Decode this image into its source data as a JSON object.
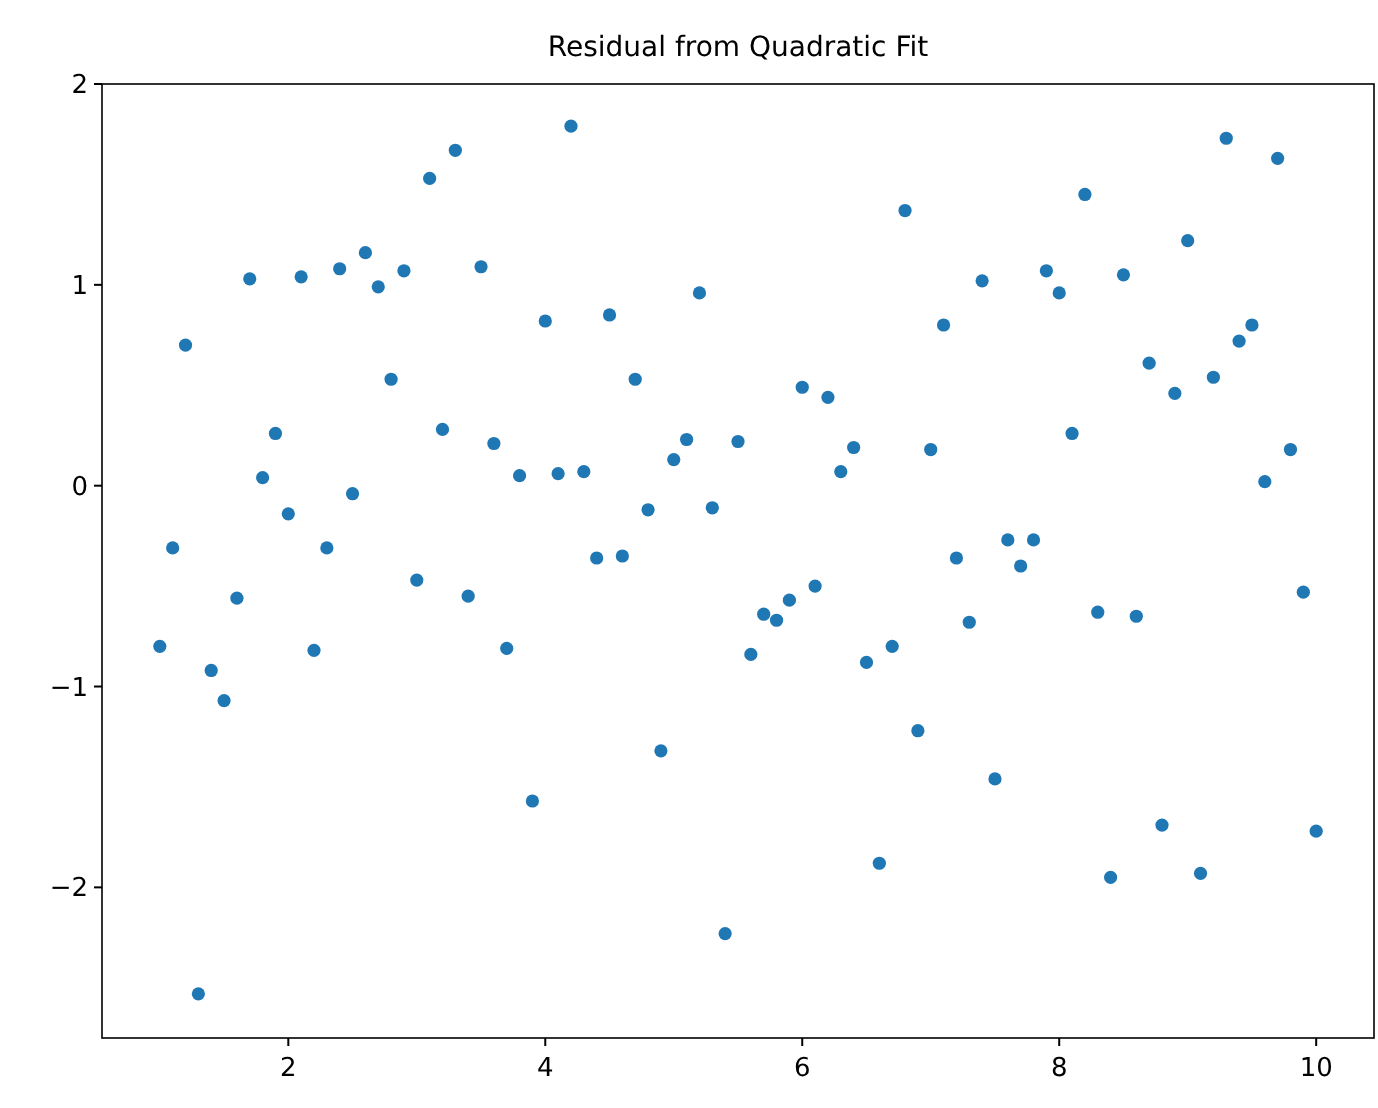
{
  "chart_data": {
    "type": "scatter",
    "title": "Residual from Quadratic Fit",
    "x": [
      1.0,
      1.1,
      1.2,
      1.3,
      1.4,
      1.5,
      1.6,
      1.7,
      1.8,
      1.9,
      2.0,
      2.1,
      2.2,
      2.3,
      2.4,
      2.5,
      2.6,
      2.7,
      2.8,
      2.9,
      3.0,
      3.1,
      3.2,
      3.3,
      3.4,
      3.5,
      3.6,
      3.7,
      3.8,
      3.9,
      4.0,
      4.1,
      4.2,
      4.3,
      4.4,
      4.5,
      4.6,
      4.7,
      4.8,
      4.9,
      5.0,
      5.1,
      5.2,
      5.3,
      5.4,
      5.5,
      5.6,
      5.7,
      5.8,
      5.9,
      6.0,
      6.1,
      6.2,
      6.3,
      6.4,
      6.5,
      6.6,
      6.7,
      6.8,
      6.9,
      7.0,
      7.1,
      7.2,
      7.3,
      7.4,
      7.5,
      7.6,
      7.7,
      7.8,
      7.9,
      8.0,
      8.1,
      8.2,
      8.3,
      8.4,
      8.5,
      8.6,
      8.7,
      8.8,
      8.9,
      9.0,
      9.1,
      9.2,
      9.3,
      9.4,
      9.5,
      9.6,
      9.7,
      9.8,
      9.9,
      10.0
    ],
    "series": [
      {
        "color": "#1f77b4",
        "values": [
          -0.8,
          -0.31,
          0.7,
          -2.53,
          -0.92,
          -1.07,
          -0.56,
          1.03,
          0.04,
          0.26,
          -0.14,
          1.04,
          -0.82,
          -0.31,
          1.08,
          -0.04,
          1.16,
          0.99,
          0.53,
          1.07,
          -0.47,
          1.53,
          0.28,
          1.67,
          -0.55,
          1.09,
          0.21,
          -0.81,
          0.05,
          -1.57,
          0.82,
          0.06,
          1.79,
          0.07,
          -0.36,
          0.85,
          -0.35,
          0.53,
          -0.12,
          -1.32,
          0.13,
          0.23,
          0.96,
          -0.11,
          -2.23,
          0.22,
          -0.84,
          -0.64,
          -0.67,
          -0.57,
          0.49,
          -0.5,
          0.44,
          0.07,
          0.19,
          -0.88,
          -1.88,
          -0.8,
          1.37,
          -1.22,
          0.18,
          0.8,
          -0.36,
          -0.68,
          1.02,
          -1.46,
          -0.27,
          -0.4,
          -0.27,
          1.07,
          0.96,
          0.26,
          1.45,
          -0.63,
          -1.95,
          1.05,
          -0.65,
          0.61,
          -1.69,
          0.46,
          1.22,
          -1.93,
          0.54,
          1.73,
          0.72,
          0.8,
          0.02,
          1.63,
          0.18,
          -0.53,
          -1.72
        ]
      }
    ],
    "xlim": [
      0.55,
      10.45
    ],
    "ylim": [
      -2.75,
      2.0
    ],
    "xticks": [
      2,
      4,
      6,
      8,
      10
    ],
    "yticks": [
      -2,
      -1,
      0,
      1,
      2
    ],
    "marker": "circle",
    "grid": false
  }
}
